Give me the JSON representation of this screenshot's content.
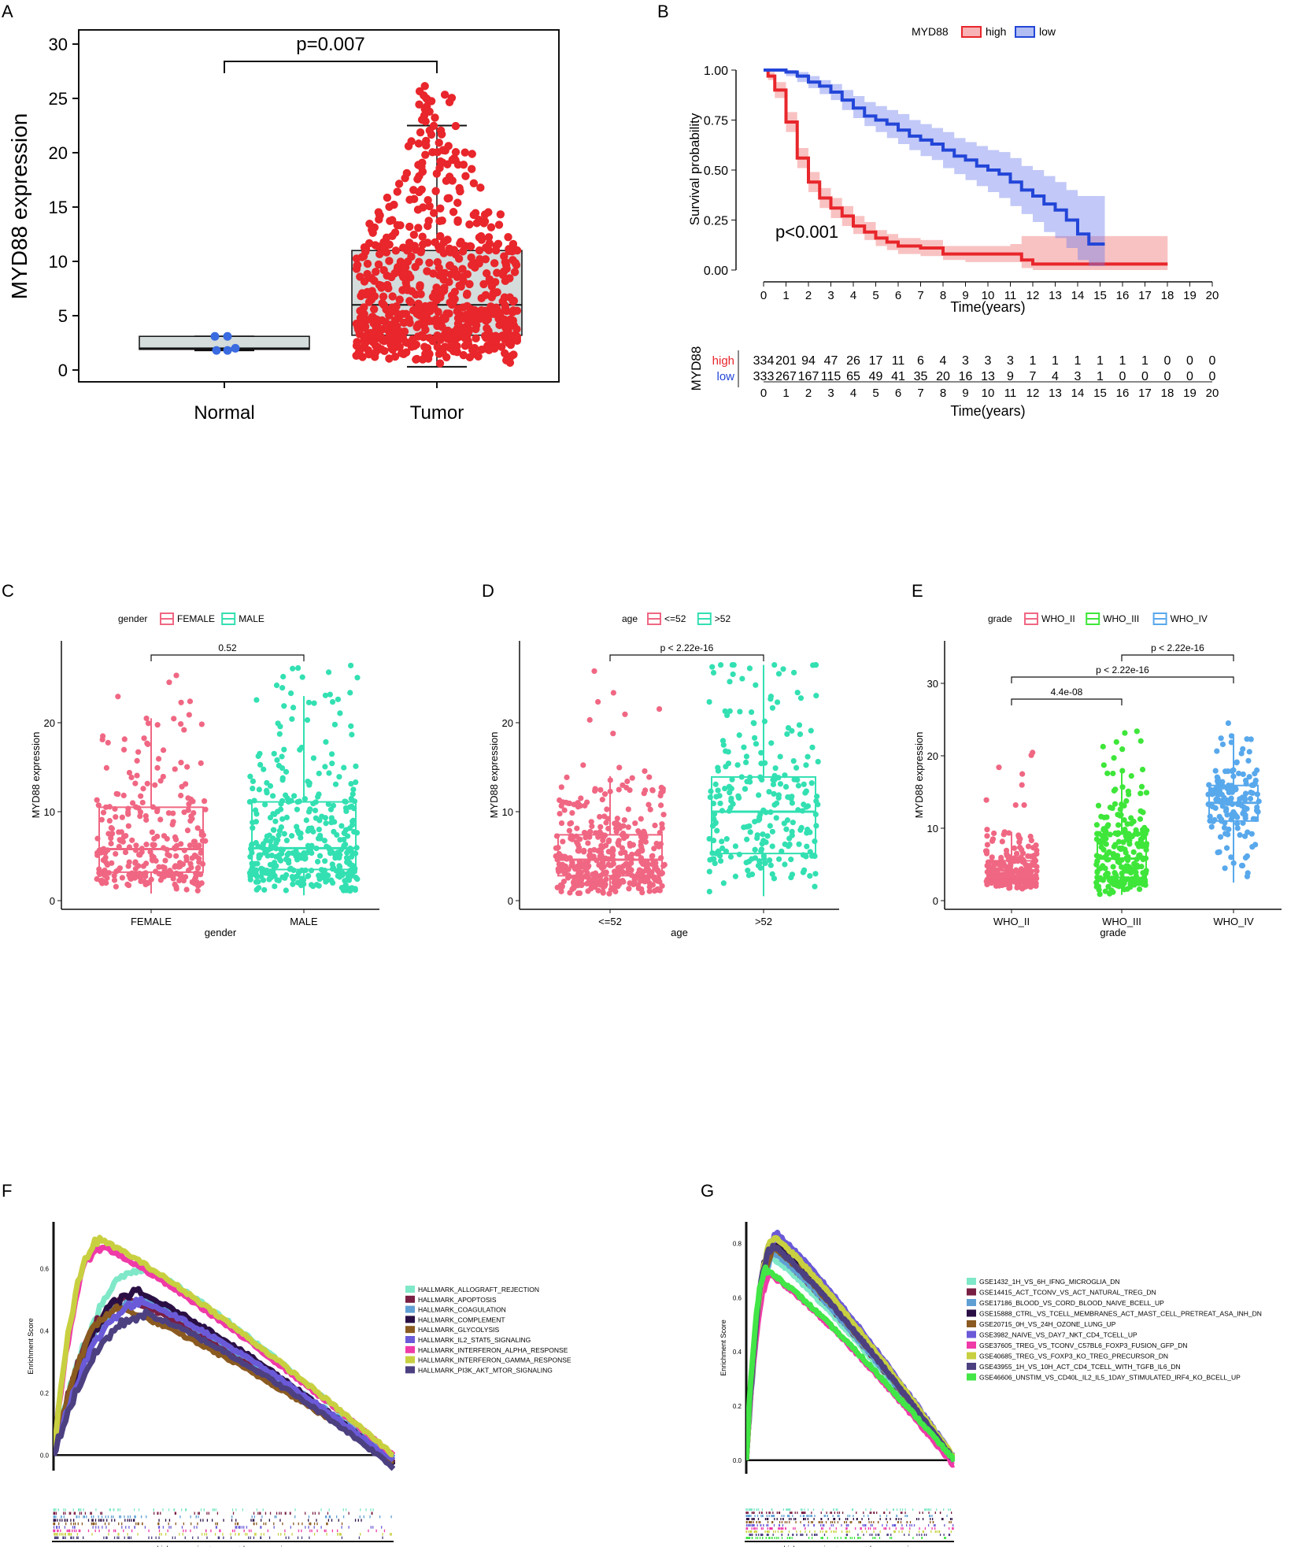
{
  "panels": {
    "A": "A",
    "B": "B",
    "C": "C",
    "D": "D",
    "E": "E",
    "F": "F",
    "G": "G"
  },
  "colors": {
    "red": "#e8262b",
    "blue": "#2346d8",
    "pink": "#f06783",
    "teal": "#33e0b2",
    "green": "#3ee63a",
    "lightblue": "#58a8ec",
    "gray_box": "#d4dcdc",
    "normal_dot": "#3a6be0"
  },
  "chart_data": [
    {
      "panel": "A",
      "type": "box",
      "ylabel": "MYD88 expression",
      "ylim": [
        0,
        30
      ],
      "yticks": [
        0,
        5,
        10,
        15,
        20,
        25,
        30
      ],
      "categories": [
        "Normal",
        "Tumor"
      ],
      "pvalue": "p=0.007",
      "boxes": [
        {
          "name": "Normal",
          "min": 1.8,
          "q1": 1.9,
          "median": 2.0,
          "q3": 3.1,
          "max": 3.1,
          "n": 5,
          "points_max": 3.1
        },
        {
          "name": "Tumor",
          "min": 0.3,
          "q1": 3.2,
          "median": 6.0,
          "q3": 11.0,
          "max": 22.5,
          "n": 660,
          "points_max": 26.5
        }
      ]
    },
    {
      "panel": "B",
      "type": "line",
      "title": "MYD88",
      "legend": [
        "high",
        "low"
      ],
      "xlabel": "Time(years)",
      "ylabel": "Survival probability",
      "xlim": [
        0,
        20
      ],
      "ylim": [
        0,
        1
      ],
      "xticks": [
        0,
        1,
        2,
        3,
        4,
        5,
        6,
        7,
        8,
        9,
        10,
        11,
        12,
        13,
        14,
        15,
        16,
        17,
        18,
        19,
        20
      ],
      "yticks": [
        "0.00",
        "0.25",
        "0.50",
        "0.75",
        "1.00"
      ],
      "pvalue": "p<0.001",
      "series": [
        {
          "name": "high",
          "x": [
            0,
            0.2,
            0.5,
            1,
            1.5,
            2,
            2.5,
            3,
            3.5,
            4,
            4.5,
            5,
            5.5,
            6,
            7,
            8,
            9,
            10,
            11,
            11.5,
            12,
            13,
            14,
            15,
            16,
            17,
            17.8
          ],
          "y": [
            1,
            0.97,
            0.9,
            0.74,
            0.56,
            0.44,
            0.36,
            0.31,
            0.27,
            0.22,
            0.19,
            0.16,
            0.14,
            0.12,
            0.11,
            0.08,
            0.08,
            0.08,
            0.08,
            0.05,
            0.03,
            0.03,
            0.03,
            0.03,
            0.03,
            0.03,
            0.03
          ],
          "lower": [
            1,
            0.95,
            0.86,
            0.69,
            0.51,
            0.39,
            0.31,
            0.26,
            0.22,
            0.18,
            0.15,
            0.12,
            0.1,
            0.08,
            0.07,
            0.05,
            0.04,
            0.04,
            0.04,
            0.01,
            0,
            0,
            0,
            0,
            0,
            0,
            0
          ],
          "upper": [
            1,
            0.99,
            0.94,
            0.79,
            0.61,
            0.49,
            0.41,
            0.36,
            0.32,
            0.27,
            0.24,
            0.2,
            0.18,
            0.16,
            0.15,
            0.12,
            0.12,
            0.12,
            0.13,
            0.17,
            0.17,
            0.17,
            0.17,
            0.17,
            0.17,
            0.17,
            0.17
          ]
        },
        {
          "name": "low",
          "x": [
            0,
            0.5,
            1,
            1.5,
            2,
            2.5,
            3,
            3.5,
            4,
            4.5,
            5,
            5.5,
            6,
            6.5,
            7,
            7.5,
            8,
            8.5,
            9,
            9.5,
            10,
            10.5,
            11,
            11.5,
            12,
            12.5,
            13,
            13.5,
            14,
            14.5,
            15
          ],
          "y": [
            1,
            1,
            0.99,
            0.97,
            0.94,
            0.92,
            0.89,
            0.85,
            0.81,
            0.77,
            0.75,
            0.73,
            0.7,
            0.67,
            0.65,
            0.63,
            0.6,
            0.57,
            0.55,
            0.52,
            0.5,
            0.48,
            0.44,
            0.4,
            0.37,
            0.33,
            0.3,
            0.25,
            0.18,
            0.13,
            0.13
          ],
          "lower": [
            1,
            1,
            0.97,
            0.94,
            0.91,
            0.88,
            0.85,
            0.8,
            0.76,
            0.72,
            0.69,
            0.66,
            0.63,
            0.6,
            0.57,
            0.55,
            0.51,
            0.48,
            0.45,
            0.42,
            0.39,
            0.36,
            0.32,
            0.28,
            0.24,
            0.19,
            0.16,
            0.11,
            0.05,
            0.02,
            0.02
          ],
          "upper": [
            1,
            1,
            1,
            0.99,
            0.97,
            0.95,
            0.93,
            0.9,
            0.87,
            0.84,
            0.82,
            0.8,
            0.78,
            0.75,
            0.73,
            0.71,
            0.69,
            0.66,
            0.64,
            0.62,
            0.6,
            0.59,
            0.56,
            0.52,
            0.5,
            0.47,
            0.44,
            0.4,
            0.37,
            0.37,
            0.37
          ]
        }
      ],
      "risk_table": {
        "ylabel": "MYD88",
        "xlabel": "Time(years)",
        "rows": [
          {
            "name": "high",
            "values": [
              "334",
              "201",
              "94",
              "47",
              "26",
              "17",
              "11",
              "6",
              "4",
              "3",
              "3",
              "3",
              "1",
              "1",
              "1",
              "1",
              "1",
              "1",
              "0",
              "0",
              "0"
            ]
          },
          {
            "name": "low",
            "values": [
              "333",
              "267",
              "167",
              "115",
              "65",
              "49",
              "41",
              "35",
              "20",
              "16",
              "13",
              "9",
              "7",
              "4",
              "3",
              "1",
              "0",
              "0",
              "0",
              "0",
              "0"
            ]
          }
        ]
      }
    },
    {
      "panel": "C",
      "type": "box",
      "legend_title": "gender",
      "legend": [
        "FEMALE",
        "MALE"
      ],
      "xlabel": "gender",
      "ylabel": "MYD88 expression",
      "ylim": [
        0,
        27
      ],
      "yticks": [
        0,
        10,
        20
      ],
      "categories": [
        "FEMALE",
        "MALE"
      ],
      "comparisons": [
        {
          "from": 0,
          "to": 1,
          "label": "0.52"
        }
      ],
      "boxes": [
        {
          "name": "FEMALE",
          "min": 0.8,
          "q1": 3.2,
          "median": 5.8,
          "q3": 10.5,
          "max": 20.5,
          "n": 290,
          "points_max": 26.0
        },
        {
          "name": "MALE",
          "min": 0.6,
          "q1": 3.5,
          "median": 5.9,
          "q3": 11.1,
          "max": 23.0,
          "n": 380,
          "points_max": 26.5
        }
      ]
    },
    {
      "panel": "D",
      "type": "box",
      "legend_title": "age",
      "legend": [
        "<=52",
        ">52"
      ],
      "xlabel": "age",
      "ylabel": "MYD88 expression",
      "ylim": [
        0,
        27
      ],
      "yticks": [
        0,
        10,
        20
      ],
      "categories": [
        "<=52",
        ">52"
      ],
      "comparisons": [
        {
          "from": 0,
          "to": 1,
          "label": "p < 2.22e-16"
        }
      ],
      "boxes": [
        {
          "name": "<=52",
          "min": 0.5,
          "q1": 2.8,
          "median": 4.6,
          "q3": 7.4,
          "max": 14.0,
          "n": 430,
          "points_max": 26.0
        },
        {
          "name": ">52",
          "min": 0.5,
          "q1": 5.3,
          "median": 10.0,
          "q3": 13.9,
          "max": 26.5,
          "n": 240,
          "points_max": 26.5
        }
      ]
    },
    {
      "panel": "E",
      "type": "box",
      "legend_title": "grade",
      "legend": [
        "WHO_II",
        "WHO_III",
        "WHO_IV"
      ],
      "xlabel": "grade",
      "ylabel": "MYD88 expression",
      "ylim": [
        0,
        33
      ],
      "yticks": [
        0,
        10,
        20,
        30
      ],
      "categories": [
        "WHO_II",
        "WHO_III",
        "WHO_IV"
      ],
      "comparisons": [
        {
          "from": 0,
          "to": 1,
          "label": "4.4e-08"
        },
        {
          "from": 0,
          "to": 2,
          "label": "p < 2.22e-16"
        },
        {
          "from": 1,
          "to": 2,
          "label": "p < 2.22e-16"
        }
      ],
      "boxes": [
        {
          "name": "WHO_II",
          "min": 1.5,
          "q1": 3.0,
          "median": 4.2,
          "q3": 5.5,
          "max": 9.5,
          "n": 230,
          "points_max": 23.0
        },
        {
          "name": "WHO_III",
          "min": 0.8,
          "q1": 3.2,
          "median": 5.8,
          "q3": 9.2,
          "max": 18.0,
          "n": 250,
          "points_max": 24.0
        },
        {
          "name": "WHO_IV",
          "min": 2.5,
          "q1": 11.0,
          "median": 13.5,
          "q3": 15.9,
          "max": 23.0,
          "n": 150,
          "points_max": 26.0
        }
      ]
    },
    {
      "panel": "F",
      "type": "line",
      "ylabel": "Enrichment Score",
      "ylim": [
        -0.05,
        0.75
      ],
      "yticks": [
        "0.0",
        "0.2",
        "0.4",
        "0.6"
      ],
      "xlabel_bottom": "high expression<------------>low expression",
      "series": [
        {
          "name": "HALLMARK_ALLOGRAFT_REJECTION",
          "color": "#7fe8c8",
          "peak": 0.6,
          "peak_x": 0.27,
          "end": -0.02
        },
        {
          "name": "HALLMARK_APOPTOSIS",
          "color": "#7a1f44",
          "peak": 0.5,
          "peak_x": 0.22,
          "end": -0.02
        },
        {
          "name": "HALLMARK_COAGULATION",
          "color": "#5f9fd4",
          "peak": 0.5,
          "peak_x": 0.25,
          "end": -0.01
        },
        {
          "name": "HALLMARK_COMPLEMENT",
          "color": "#2a0f44",
          "peak": 0.52,
          "peak_x": 0.25,
          "end": -0.03
        },
        {
          "name": "HALLMARK_GLYCOLYSIS",
          "color": "#8a5a20",
          "peak": 0.47,
          "peak_x": 0.2,
          "end": -0.02
        },
        {
          "name": "HALLMARK_IL2_STAT5_SIGNALING",
          "color": "#6a5ad8",
          "peak": 0.49,
          "peak_x": 0.27,
          "end": -0.02
        },
        {
          "name": "HALLMARK_INTERFERON_ALPHA_RESPONSE",
          "color": "#ef3aa8",
          "peak": 0.67,
          "peak_x": 0.14,
          "end": 0.0
        },
        {
          "name": "HALLMARK_INTERFERON_GAMMA_RESPONSE",
          "color": "#c8d040",
          "peak": 0.69,
          "peak_x": 0.14,
          "end": 0.0
        },
        {
          "name": "HALLMARK_PI3K_AKT_MTOR_SIGNALING",
          "color": "#4d4080",
          "peak": 0.45,
          "peak_x": 0.28,
          "end": -0.04
        }
      ]
    },
    {
      "panel": "G",
      "type": "line",
      "ylabel": "Enrichment Score",
      "ylim": [
        -0.05,
        0.88
      ],
      "yticks": [
        "0.0",
        "0.2",
        "0.4",
        "0.6",
        "0.8"
      ],
      "xlabel_bottom": "high expression<------------>low expression",
      "series": [
        {
          "name": "GSE1432_1H_VS_6H_IFNG_MICROGLIA_DN",
          "color": "#7fe8c8",
          "peak": 0.75,
          "peak_x": 0.12,
          "end": 0.0
        },
        {
          "name": "GSE14415_ACT_TCONV_VS_ACT_NATURAL_TREG_DN",
          "color": "#7a1f44",
          "peak": 0.77,
          "peak_x": 0.13,
          "end": 0.0
        },
        {
          "name": "GSE17186_BLOOD_VS_CORD_BLOOD_NAIVE_BCELL_UP",
          "color": "#5f9fd4",
          "peak": 0.76,
          "peak_x": 0.14,
          "end": 0.0
        },
        {
          "name": "GSE15888_CTRL_VS_TCELL_MEMBRANES_ACT_MAST_CELL_PRETREAT_ASA_INH_DN",
          "color": "#2a0f44",
          "peak": 0.8,
          "peak_x": 0.13,
          "end": 0.0
        },
        {
          "name": "GSE20715_0H_VS_24H_OZONE_LUNG_UP",
          "color": "#8a5a20",
          "peak": 0.78,
          "peak_x": 0.14,
          "end": 0.0
        },
        {
          "name": "GSE3982_NAIVE_VS_DAY7_NKT_CD4_TCELL_UP",
          "color": "#6a5ad8",
          "peak": 0.83,
          "peak_x": 0.15,
          "end": 0.01
        },
        {
          "name": "GSE37605_TREG_VS_TCONV_C57BL6_FOXP3_FUSION_GFP_DN",
          "color": "#ef3aa8",
          "peak": 0.68,
          "peak_x": 0.12,
          "end": -0.02
        },
        {
          "name": "GSE40685_TREG_VS_FOXP3_KO_TREG_PRECURSOR_DN",
          "color": "#c8d040",
          "peak": 0.82,
          "peak_x": 0.14,
          "end": 0.01
        },
        {
          "name": "GSE43955_1H_VS_10H_ACT_CD4_TCELL_WITH_TGFB_IL6_DN",
          "color": "#4d4080",
          "peak": 0.79,
          "peak_x": 0.13,
          "end": 0.0
        },
        {
          "name": "GSE46606_UNSTIM_VS_CD40L_IL2_IL5_1DAY_STIMULATED_IRF4_KO_BCELL_UP",
          "color": "#42e646",
          "peak": 0.7,
          "peak_x": 0.1,
          "end": 0.0
        }
      ]
    }
  ]
}
